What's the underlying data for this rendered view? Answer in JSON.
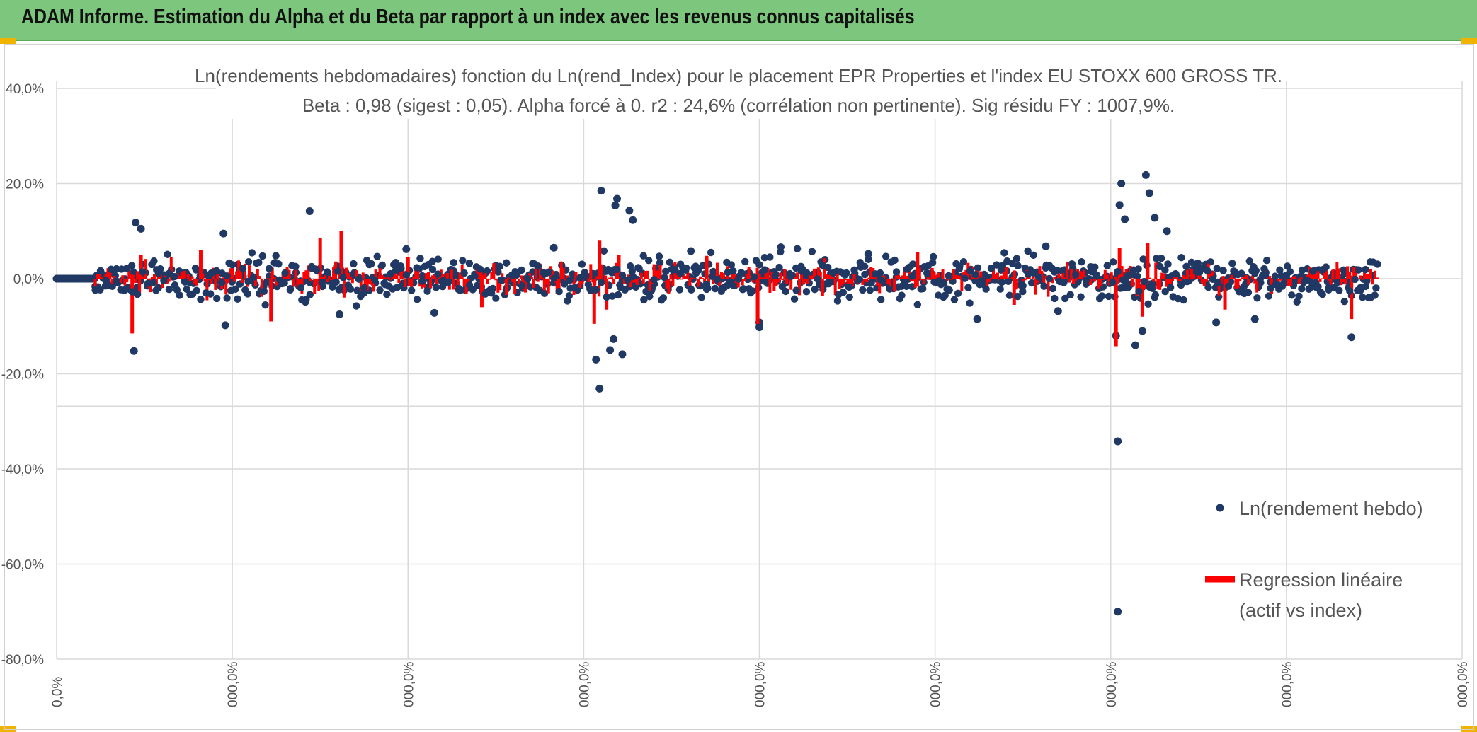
{
  "header": {
    "title": "ADAM Informe. Estimation du Alpha et du Beta par rapport à un index avec les revenus connus capitalisés"
  },
  "colors": {
    "header_bg": "#7dc67d",
    "points": "#203864",
    "regression": "#ff0000",
    "grid": "#d9d9d9"
  },
  "chart_data": {
    "type": "scatter",
    "title": "Ln(rendements hebdomadaires) fonction du Ln(rend_Index) pour le placement EPR Properties et l'index EU STOXX 600 GROSS TR.",
    "subtitle": "Beta : 0,98 (sigest : 0,05). Alpha forcé à 0. r2 : 24,6% (corrélation non pertinente). Sig résidu FY : 1007,9%.",
    "xlabel": "",
    "ylabel": "",
    "ylim": [
      -80,
      40
    ],
    "xlim": [
      0,
      8
    ],
    "y_ticks": [
      40,
      20,
      0,
      -20,
      -40,
      -60,
      -80
    ],
    "y_tick_labels": [
      "40,0%",
      "20,0%",
      "0,0%",
      "-20,0%",
      "-40,0%",
      "-60,0%",
      "-80,0%"
    ],
    "x_ticks": [
      0,
      1,
      2,
      3,
      4,
      5,
      6,
      7,
      8
    ],
    "x_tick_labels": [
      "0,0%",
      "000,0%",
      "000,0%",
      "000,0%",
      "000,0%",
      "000,0%",
      "000,0%",
      "000,0%",
      "000,0%"
    ],
    "grid": true,
    "legend_position": "right",
    "series": [
      {
        "name": "Ln(rendement hebdo)",
        "kind": "points"
      },
      {
        "name": "Regression linéaire (actif vs index)",
        "kind": "line"
      }
    ],
    "legend": {
      "points_label": "Ln(rendement hebdo)",
      "line_label_1": "Regression linéaire",
      "line_label_2": "(actif vs index)"
    },
    "notable_points": [
      {
        "x": 0.44,
        "y": -15.2
      },
      {
        "x": 0.45,
        "y": 11.8
      },
      {
        "x": 0.48,
        "y": 10.5
      },
      {
        "x": 1.44,
        "y": 14.2
      },
      {
        "x": 0.95,
        "y": 9.5
      },
      {
        "x": 0.96,
        "y": -9.8
      },
      {
        "x": 3.09,
        "y": -23.1
      },
      {
        "x": 3.07,
        "y": -17.0
      },
      {
        "x": 3.1,
        "y": 18.5
      },
      {
        "x": 3.19,
        "y": 16.8
      },
      {
        "x": 3.18,
        "y": 15.4
      },
      {
        "x": 3.26,
        "y": 14.3
      },
      {
        "x": 3.28,
        "y": 12.3
      },
      {
        "x": 3.15,
        "y": -15.0
      },
      {
        "x": 3.22,
        "y": -15.9
      },
      {
        "x": 3.17,
        "y": -12.7
      },
      {
        "x": 4.0,
        "y": -10.2
      },
      {
        "x": 4.0,
        "y": -9.2
      },
      {
        "x": 5.24,
        "y": -8.5
      },
      {
        "x": 6.04,
        "y": -70.0
      },
      {
        "x": 6.04,
        "y": -34.2
      },
      {
        "x": 6.06,
        "y": 20.0
      },
      {
        "x": 6.05,
        "y": 15.5
      },
      {
        "x": 6.08,
        "y": 12.5
      },
      {
        "x": 6.2,
        "y": 21.8
      },
      {
        "x": 6.22,
        "y": 18.0
      },
      {
        "x": 6.25,
        "y": 12.8
      },
      {
        "x": 6.32,
        "y": 10.0
      },
      {
        "x": 6.03,
        "y": -12.0
      },
      {
        "x": 6.14,
        "y": -14.0
      },
      {
        "x": 6.18,
        "y": -11.0
      },
      {
        "x": 7.37,
        "y": -12.3
      },
      {
        "x": 5.63,
        "y": 6.8
      },
      {
        "x": 1.99,
        "y": 6.2
      },
      {
        "x": 2.83,
        "y": 6.5
      },
      {
        "x": 1.61,
        "y": -7.5
      },
      {
        "x": 3.61,
        "y": 5.8
      },
      {
        "x": 4.62,
        "y": 5.2
      },
      {
        "x": 6.82,
        "y": -8.5
      },
      {
        "x": 6.6,
        "y": -9.2
      },
      {
        "x": 2.15,
        "y": -7.2
      },
      {
        "x": 5.7,
        "y": -6.8
      }
    ],
    "regression_spikes": [
      {
        "x": 0.43,
        "y0": -11.5,
        "y1": 0
      },
      {
        "x": 0.48,
        "y0": 0,
        "y1": 5.0
      },
      {
        "x": 1.22,
        "y0": -9.0,
        "y1": 0
      },
      {
        "x": 1.5,
        "y0": 0,
        "y1": 8.5
      },
      {
        "x": 1.62,
        "y0": 0,
        "y1": 10.0
      },
      {
        "x": 0.82,
        "y0": 0,
        "y1": 6.0
      },
      {
        "x": 3.06,
        "y0": -9.5,
        "y1": 0
      },
      {
        "x": 3.09,
        "y0": 0,
        "y1": 8.0
      },
      {
        "x": 3.13,
        "y0": -6.5,
        "y1": 0
      },
      {
        "x": 3.2,
        "y0": 0,
        "y1": 5.0
      },
      {
        "x": 3.99,
        "y0": -9.5,
        "y1": 0
      },
      {
        "x": 6.03,
        "y0": -14.2,
        "y1": 0
      },
      {
        "x": 6.05,
        "y0": 0,
        "y1": 6.5
      },
      {
        "x": 6.21,
        "y0": 0,
        "y1": 7.5
      },
      {
        "x": 6.18,
        "y0": -8.0,
        "y1": 0
      },
      {
        "x": 7.37,
        "y0": -8.5,
        "y1": 0
      },
      {
        "x": 2.0,
        "y0": 0,
        "y1": 4.5
      },
      {
        "x": 4.9,
        "y0": 0,
        "y1": 5.5
      },
      {
        "x": 2.42,
        "y0": -6.0,
        "y1": 0
      },
      {
        "x": 5.45,
        "y0": -5.5,
        "y1": 0
      },
      {
        "x": 6.65,
        "y0": -6.5,
        "y1": 0
      },
      {
        "x": 3.7,
        "y0": 0,
        "y1": 4.8
      }
    ],
    "dense_cluster": {
      "x_start": 0.0,
      "x_flat_end": 0.22,
      "x_end": 7.52,
      "typical_amplitude": 4.0,
      "seed": 7
    }
  }
}
